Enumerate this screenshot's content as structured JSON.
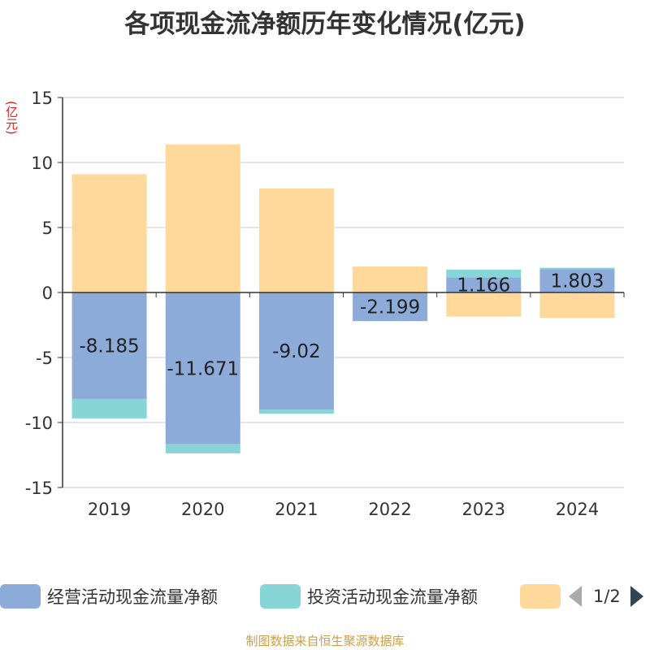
{
  "title": "各项现金流净额历年变化情况(亿元)",
  "unit_label": "(亿元)",
  "source": "制图数据来自恒生聚源数据库",
  "legend": {
    "page_text": "1/2"
  },
  "chart_data": {
    "type": "bar",
    "stacked": true,
    "categories": [
      "2019",
      "2020",
      "2021",
      "2022",
      "2023",
      "2024"
    ],
    "ylim": [
      -15,
      15
    ],
    "yticks": [
      15,
      10,
      5,
      0,
      -5,
      -10,
      -15
    ],
    "grid": true,
    "legend_position": "bottom",
    "series": [
      {
        "name": "经营活动现金流量净额",
        "color": "#8dabd9",
        "values": [
          -8.185,
          -11.671,
          -9.02,
          -2.199,
          1.166,
          1.803
        ],
        "labels": [
          "-8.185",
          "-11.671",
          "-9.02",
          "-2.199",
          "1.166",
          "1.803"
        ]
      },
      {
        "name": "投资活动现金流量净额",
        "color": "#88d5d8",
        "values": [
          -1.5,
          -0.7,
          -0.3,
          0.05,
          0.6,
          0.1
        ]
      },
      {
        "name": "",
        "color": "#ffd89b",
        "values": [
          9.1,
          11.4,
          8.0,
          1.95,
          -1.85,
          -1.95
        ]
      }
    ]
  }
}
